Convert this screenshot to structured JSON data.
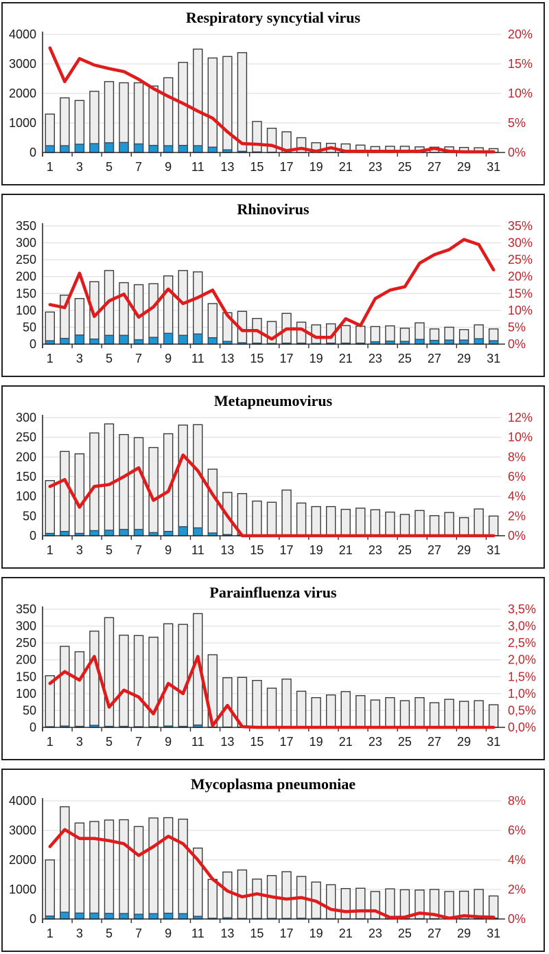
{
  "colors": {
    "bar_gray_fill": "#ededed",
    "bar_gray_border": "#3a3a3a",
    "bar_blue_fill": "#2196d0",
    "bar_blue_border": "#2f4d66",
    "line_red": "#e01b1b",
    "right_axis_label": "#c2242a",
    "left_axis_label": "#1a1a1a",
    "gridline": "#d9d9d9",
    "axis_line": "#2b2b2b",
    "panel_border": "#1f1f1f"
  },
  "chart_data": [
    {
      "type": "bar+line",
      "title": "Respiratory syncytial virus",
      "categories": [
        1,
        2,
        3,
        4,
        5,
        6,
        7,
        8,
        9,
        10,
        11,
        12,
        13,
        14,
        15,
        16,
        17,
        18,
        19,
        20,
        21,
        22,
        23,
        24,
        25,
        26,
        27,
        28,
        29,
        30,
        31
      ],
      "x_label_every": 2,
      "left_axis": {
        "min": 0,
        "max": 4000,
        "ticks": [
          "0",
          "1000",
          "2000",
          "3000",
          "4000"
        ]
      },
      "right_axis": {
        "min": 0,
        "max": 20,
        "ticks": [
          "0%",
          "5%",
          "10%",
          "15%",
          "20%"
        ]
      },
      "series": [
        {
          "name": "samples-tested",
          "type": "bar",
          "color_key": "gray",
          "values": [
            1300,
            1850,
            1760,
            2070,
            2400,
            2360,
            2360,
            2250,
            2530,
            3050,
            3500,
            3200,
            3250,
            3380,
            1050,
            820,
            700,
            500,
            330,
            310,
            290,
            250,
            200,
            210,
            210,
            190,
            180,
            190,
            170,
            160,
            130
          ]
        },
        {
          "name": "samples-positive",
          "type": "bar",
          "color_key": "blue",
          "values": [
            230,
            230,
            280,
            300,
            330,
            340,
            290,
            240,
            230,
            240,
            230,
            180,
            90,
            40,
            20,
            10,
            0,
            0,
            0,
            0,
            0,
            0,
            0,
            0,
            0,
            0,
            0,
            0,
            0,
            0,
            0
          ]
        },
        {
          "name": "percent-positive",
          "type": "line",
          "axis": "right",
          "values": [
            17.7,
            12.0,
            15.9,
            14.8,
            14.2,
            13.7,
            12.4,
            10.8,
            9.5,
            8.3,
            7.0,
            5.8,
            3.5,
            1.5,
            1.4,
            1.2,
            0.3,
            0.7,
            0.2,
            0.8,
            0.2,
            0.2,
            0.2,
            0.2,
            0.2,
            0.2,
            0.7,
            0.2,
            0.1,
            0.1,
            0.1
          ]
        }
      ]
    },
    {
      "type": "bar+line",
      "title": "Rhinovirus",
      "categories": [
        1,
        2,
        3,
        4,
        5,
        6,
        7,
        8,
        9,
        10,
        11,
        12,
        13,
        14,
        15,
        16,
        17,
        18,
        19,
        20,
        21,
        22,
        23,
        24,
        25,
        26,
        27,
        28,
        29,
        30,
        31
      ],
      "x_label_every": 2,
      "left_axis": {
        "min": 0,
        "max": 350,
        "ticks": [
          "0",
          "50",
          "100",
          "150",
          "200",
          "250",
          "300",
          "350"
        ]
      },
      "right_axis": {
        "min": 0,
        "max": 35,
        "ticks": [
          "0%",
          "5%",
          "10%",
          "15%",
          "20%",
          "25%",
          "30%",
          "35%"
        ]
      },
      "series": [
        {
          "name": "samples-tested",
          "type": "bar",
          "color_key": "gray",
          "values": [
            95,
            145,
            135,
            185,
            218,
            182,
            176,
            179,
            202,
            218,
            214,
            120,
            93,
            97,
            76,
            67,
            91,
            65,
            57,
            60,
            55,
            53,
            52,
            54,
            47,
            63,
            45,
            50,
            43,
            57,
            45
          ]
        },
        {
          "name": "samples-positive",
          "type": "bar",
          "color_key": "blue",
          "values": [
            10,
            17,
            27,
            15,
            26,
            26,
            13,
            20,
            32,
            26,
            30,
            19,
            8,
            4,
            3,
            2,
            3,
            3,
            2,
            3,
            3,
            3,
            7,
            9,
            8,
            14,
            11,
            12,
            12,
            16,
            10
          ]
        },
        {
          "name": "percent-positive",
          "type": "line",
          "axis": "right",
          "values": [
            11.7,
            10.8,
            21.0,
            8.2,
            12.8,
            14.8,
            8.0,
            11.0,
            16.3,
            12.0,
            13.8,
            16.0,
            8.5,
            4.0,
            4.0,
            1.5,
            4.5,
            4.5,
            2.0,
            2.0,
            7.5,
            5.5,
            13.5,
            16.0,
            17.0,
            24.0,
            26.5,
            28.0,
            31.0,
            29.5,
            22.0
          ]
        }
      ]
    },
    {
      "type": "bar+line",
      "title": "Metapneumovirus",
      "categories": [
        1,
        2,
        3,
        4,
        5,
        6,
        7,
        8,
        9,
        10,
        11,
        12,
        13,
        14,
        15,
        16,
        17,
        18,
        19,
        20,
        21,
        22,
        23,
        24,
        25,
        26,
        27,
        28,
        29,
        30,
        31
      ],
      "x_label_every": 2,
      "left_axis": {
        "min": 0,
        "max": 300,
        "ticks": [
          "0",
          "50",
          "100",
          "150",
          "200",
          "250",
          "300"
        ]
      },
      "right_axis": {
        "min": 0,
        "max": 12,
        "ticks": [
          "0%",
          "2%",
          "4%",
          "6%",
          "8%",
          "10%",
          "12%"
        ]
      },
      "series": [
        {
          "name": "samples-tested",
          "type": "bar",
          "color_key": "gray",
          "values": [
            140,
            214,
            208,
            261,
            284,
            257,
            249,
            224,
            259,
            281,
            282,
            169,
            110,
            107,
            88,
            85,
            116,
            83,
            74,
            74,
            67,
            70,
            66,
            60,
            54,
            64,
            51,
            59,
            46,
            68,
            50
          ]
        },
        {
          "name": "samples-positive",
          "type": "bar",
          "color_key": "blue",
          "values": [
            6,
            11,
            6,
            13,
            14,
            16,
            16,
            8,
            11,
            23,
            20,
            7,
            3,
            2,
            0,
            0,
            0,
            0,
            0,
            0,
            0,
            0,
            0,
            0,
            0,
            0,
            0,
            0,
            0,
            0,
            0
          ]
        },
        {
          "name": "percent-positive",
          "type": "line",
          "axis": "right",
          "values": [
            5.0,
            5.7,
            2.9,
            5.0,
            5.2,
            6.0,
            6.9,
            3.6,
            4.5,
            8.2,
            6.6,
            4.2,
            2.0,
            0,
            0,
            0,
            0,
            0,
            0,
            0,
            0,
            0,
            0,
            0,
            0,
            0,
            0,
            0,
            0,
            0,
            0
          ]
        }
      ]
    },
    {
      "type": "bar+line",
      "title": "Parainfluenza virus",
      "categories": [
        1,
        2,
        3,
        4,
        5,
        6,
        7,
        8,
        9,
        10,
        11,
        12,
        13,
        14,
        15,
        16,
        17,
        18,
        19,
        20,
        21,
        22,
        23,
        24,
        25,
        26,
        27,
        28,
        29,
        30,
        31
      ],
      "x_label_every": 2,
      "left_axis": {
        "min": 0,
        "max": 350,
        "ticks": [
          "0",
          "50",
          "100",
          "150",
          "200",
          "250",
          "300",
          "350"
        ]
      },
      "right_axis": {
        "min": 0,
        "max": 3.5,
        "ticks": [
          "0,0%",
          "0,5%",
          "1,0%",
          "1,5%",
          "2,0%",
          "2,5%",
          "3,0%",
          "3,5%"
        ]
      },
      "series": [
        {
          "name": "samples-tested",
          "type": "bar",
          "color_key": "gray",
          "values": [
            153,
            240,
            224,
            285,
            325,
            273,
            272,
            267,
            307,
            305,
            337,
            215,
            147,
            148,
            139,
            116,
            143,
            107,
            88,
            96,
            106,
            94,
            81,
            88,
            79,
            88,
            73,
            83,
            77,
            79,
            67
          ]
        },
        {
          "name": "samples-positive",
          "type": "bar",
          "color_key": "blue",
          "values": [
            2,
            4,
            3,
            6,
            3,
            3,
            2,
            2,
            4,
            3,
            7,
            1,
            1,
            1,
            0,
            0,
            0,
            0,
            0,
            0,
            0,
            0,
            0,
            0,
            0,
            0,
            0,
            0,
            0,
            0,
            0
          ]
        },
        {
          "name": "percent-positive",
          "type": "line",
          "axis": "right",
          "values": [
            1.3,
            1.65,
            1.4,
            2.1,
            0.6,
            1.1,
            0.9,
            0.4,
            1.3,
            1.0,
            2.1,
            0.05,
            0.65,
            0.02,
            0,
            0,
            0,
            0,
            0,
            0,
            0,
            0,
            0,
            0,
            0,
            0,
            0,
            0,
            0,
            0,
            0
          ]
        }
      ]
    },
    {
      "type": "bar+line",
      "title": "Mycoplasma pneumoniae",
      "categories": [
        1,
        2,
        3,
        4,
        5,
        6,
        7,
        8,
        9,
        10,
        11,
        12,
        13,
        14,
        15,
        16,
        17,
        18,
        19,
        20,
        21,
        22,
        23,
        24,
        25,
        26,
        27,
        28,
        29,
        30,
        31
      ],
      "x_label_every": 2,
      "left_axis": {
        "min": 0,
        "max": 4000,
        "ticks": [
          "0",
          "1000",
          "2000",
          "3000",
          "4000"
        ]
      },
      "right_axis": {
        "min": 0,
        "max": 8,
        "ticks": [
          "0%",
          "2%",
          "4%",
          "6%",
          "8%"
        ]
      },
      "series": [
        {
          "name": "samples-tested",
          "type": "bar",
          "color_key": "gray",
          "values": [
            2000,
            3800,
            3250,
            3300,
            3350,
            3360,
            3130,
            3420,
            3430,
            3380,
            2400,
            1340,
            1590,
            1660,
            1350,
            1470,
            1600,
            1440,
            1250,
            1160,
            1030,
            1040,
            930,
            1020,
            990,
            980,
            1000,
            930,
            940,
            1000,
            780
          ]
        },
        {
          "name": "samples-positive",
          "type": "bar",
          "color_key": "blue",
          "values": [
            100,
            230,
            200,
            200,
            190,
            185,
            160,
            180,
            195,
            180,
            90,
            25,
            40,
            20,
            20,
            20,
            20,
            25,
            20,
            10,
            10,
            10,
            10,
            10,
            5,
            10,
            10,
            5,
            10,
            10,
            30
          ]
        },
        {
          "name": "percent-positive",
          "type": "line",
          "axis": "right",
          "values": [
            4.9,
            6.05,
            5.45,
            5.45,
            5.3,
            5.1,
            4.3,
            4.9,
            5.6,
            5.1,
            4.0,
            2.7,
            1.9,
            1.5,
            1.7,
            1.5,
            1.35,
            1.45,
            1.2,
            0.65,
            0.5,
            0.55,
            0.55,
            0.1,
            0.12,
            0.4,
            0.3,
            0.05,
            0.22,
            0.15,
            0.12
          ]
        }
      ]
    }
  ]
}
